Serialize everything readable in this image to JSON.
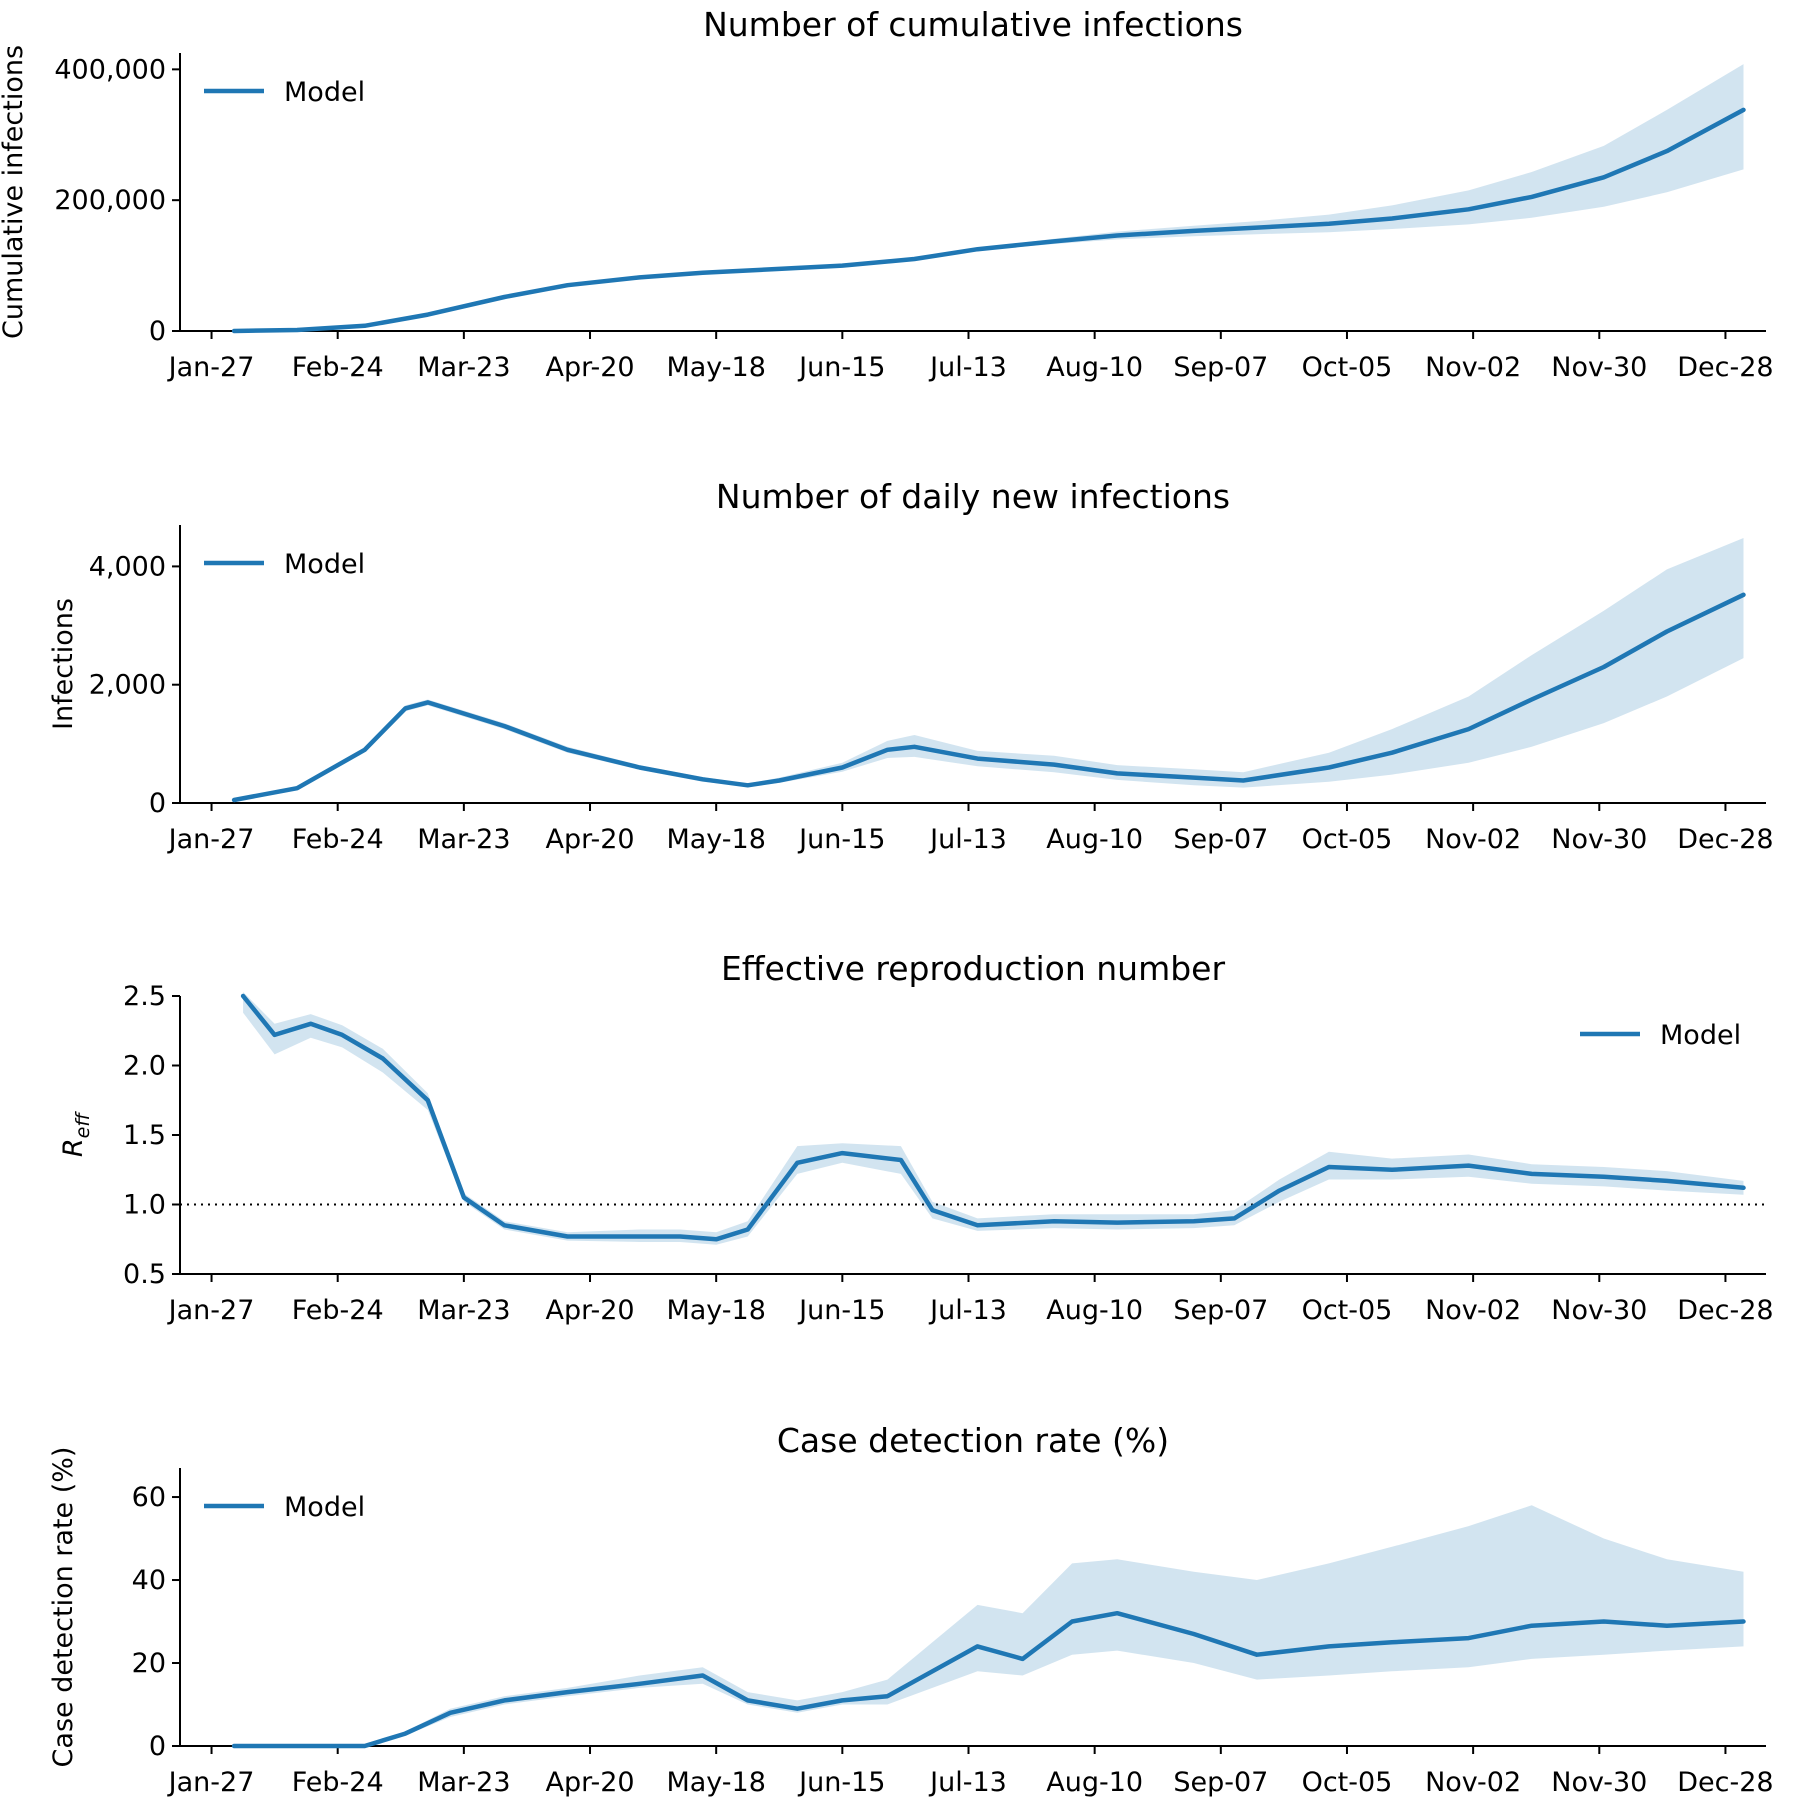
{
  "figure": {
    "background": "#ffffff"
  },
  "colors": {
    "line": "#1f77b4",
    "band": "#1f77b4",
    "band_opacity": 0.2,
    "reference": "#000000"
  },
  "date_axis": {
    "start": "Jan-20",
    "end": "Jan-06",
    "tick_dates": [
      "Jan-27",
      "Feb-24",
      "Mar-23",
      "Apr-20",
      "May-18",
      "Jun-15",
      "Jul-13",
      "Aug-10",
      "Sep-07",
      "Oct-05",
      "Nov-02",
      "Nov-30",
      "Dec-28"
    ]
  },
  "chart_data": [
    {
      "type": "line",
      "title": "Number of cumulative infections",
      "ylabel": "Cumulative infections",
      "ylim": [
        0,
        425000
      ],
      "yticks": [
        0,
        200000,
        400000
      ],
      "ytick_labels": [
        "0",
        "200,000",
        "400,000"
      ],
      "legend": {
        "position": "top-left",
        "label": "Model"
      },
      "series": [
        {
          "name": "Model",
          "x": [
            "Feb-01",
            "Feb-15",
            "Mar-01",
            "Mar-15",
            "Apr-01",
            "Apr-15",
            "May-01",
            "May-15",
            "Jun-01",
            "Jun-15",
            "Jul-01",
            "Jul-15",
            "Aug-01",
            "Aug-15",
            "Sep-01",
            "Sep-15",
            "Oct-01",
            "Oct-15",
            "Nov-01",
            "Nov-15",
            "Dec-01",
            "Dec-15",
            "Jan-01"
          ],
          "y": [
            0,
            1500,
            8000,
            25000,
            52000,
            70000,
            82000,
            89000,
            95000,
            100000,
            110000,
            125000,
            137000,
            146000,
            153000,
            158000,
            164000,
            172000,
            186000,
            205000,
            235000,
            275000,
            338000
          ],
          "lower": [
            0,
            1500,
            8000,
            25000,
            52000,
            70000,
            82000,
            89000,
            95000,
            100000,
            109000,
            123000,
            133000,
            140000,
            145000,
            148000,
            151000,
            156000,
            163000,
            173000,
            190000,
            212000,
            247000
          ],
          "upper": [
            0,
            1500,
            8000,
            25000,
            52000,
            70000,
            82000,
            89000,
            95000,
            100000,
            111000,
            127000,
            141000,
            152000,
            161000,
            168000,
            178000,
            192000,
            215000,
            243000,
            283000,
            338000,
            408000
          ]
        }
      ]
    },
    {
      "type": "line",
      "title": "Number of daily new infections",
      "ylabel": "Infections",
      "ylim": [
        0,
        4700
      ],
      "yticks": [
        0,
        2000,
        4000
      ],
      "ytick_labels": [
        "0",
        "2,000",
        "4,000"
      ],
      "legend": {
        "position": "top-left",
        "label": "Model"
      },
      "series": [
        {
          "name": "Model",
          "x": [
            "Feb-01",
            "Feb-15",
            "Mar-01",
            "Mar-10",
            "Mar-15",
            "Apr-01",
            "Apr-15",
            "May-01",
            "May-15",
            "May-25",
            "Jun-01",
            "Jun-15",
            "Jun-25",
            "Jul-01",
            "Jul-15",
            "Aug-01",
            "Aug-15",
            "Sep-01",
            "Sep-12",
            "Oct-01",
            "Oct-15",
            "Nov-01",
            "Nov-15",
            "Dec-01",
            "Dec-15",
            "Jan-01"
          ],
          "y": [
            50,
            250,
            900,
            1600,
            1700,
            1300,
            900,
            600,
            400,
            300,
            380,
            600,
            900,
            950,
            750,
            650,
            500,
            430,
            380,
            600,
            850,
            1250,
            1750,
            2300,
            2900,
            3520
          ],
          "lower": [
            50,
            250,
            880,
            1550,
            1650,
            1250,
            850,
            560,
            360,
            280,
            340,
            530,
            760,
            780,
            620,
            520,
            390,
            300,
            260,
            360,
            480,
            680,
            950,
            1350,
            1800,
            2450
          ],
          "upper": [
            50,
            250,
            920,
            1650,
            1750,
            1350,
            950,
            640,
            440,
            330,
            430,
            680,
            1050,
            1150,
            880,
            800,
            640,
            570,
            520,
            850,
            1250,
            1800,
            2500,
            3250,
            3950,
            4480
          ]
        }
      ]
    },
    {
      "type": "line",
      "title": "Effective reproduction number",
      "ylabel": "R_eff",
      "ylim": [
        0.5,
        2.5
      ],
      "yticks": [
        0.5,
        1.0,
        1.5,
        2.0,
        2.5
      ],
      "ytick_labels": [
        "0.5",
        "1.0",
        "1.5",
        "2.0",
        "2.5"
      ],
      "reference_line": 1.0,
      "legend": {
        "position": "top-right",
        "label": "Model"
      },
      "series": [
        {
          "name": "Model",
          "x": [
            "Feb-03",
            "Feb-10",
            "Feb-18",
            "Feb-25",
            "Mar-05",
            "Mar-15",
            "Mar-23",
            "Apr-01",
            "Apr-15",
            "May-01",
            "May-10",
            "May-18",
            "May-25",
            "Jun-05",
            "Jun-15",
            "Jun-28",
            "Jul-05",
            "Jul-15",
            "Aug-01",
            "Aug-15",
            "Sep-01",
            "Sep-10",
            "Sep-20",
            "Oct-01",
            "Oct-15",
            "Nov-01",
            "Nov-15",
            "Dec-01",
            "Dec-15",
            "Jan-01"
          ],
          "y": [
            2.5,
            2.22,
            2.3,
            2.22,
            2.05,
            1.75,
            1.05,
            0.85,
            0.77,
            0.77,
            0.77,
            0.75,
            0.82,
            1.3,
            1.37,
            1.32,
            0.96,
            0.85,
            0.88,
            0.87,
            0.88,
            0.9,
            1.1,
            1.27,
            1.25,
            1.28,
            1.22,
            1.2,
            1.17,
            1.12
          ],
          "lower": [
            2.38,
            2.08,
            2.2,
            2.13,
            1.95,
            1.68,
            1.02,
            0.82,
            0.74,
            0.73,
            0.73,
            0.71,
            0.77,
            1.22,
            1.3,
            1.22,
            0.9,
            0.81,
            0.83,
            0.82,
            0.83,
            0.85,
            1.02,
            1.18,
            1.18,
            1.2,
            1.15,
            1.13,
            1.1,
            1.07
          ],
          "upper": [
            2.55,
            2.3,
            2.37,
            2.29,
            2.12,
            1.8,
            1.08,
            0.88,
            0.8,
            0.82,
            0.82,
            0.8,
            0.88,
            1.42,
            1.44,
            1.42,
            1.02,
            0.9,
            0.93,
            0.93,
            0.93,
            0.96,
            1.18,
            1.38,
            1.33,
            1.36,
            1.29,
            1.27,
            1.24,
            1.17
          ]
        }
      ]
    },
    {
      "type": "line",
      "title": "Case detection rate (%)",
      "ylabel": "Case detection rate (%)",
      "ylim": [
        0,
        67
      ],
      "yticks": [
        0,
        20,
        40,
        60
      ],
      "ytick_labels": [
        "0",
        "20",
        "40",
        "60"
      ],
      "legend": {
        "position": "top-left",
        "label": "Model"
      },
      "series": [
        {
          "name": "Model",
          "x": [
            "Feb-01",
            "Feb-15",
            "Mar-01",
            "Mar-10",
            "Mar-20",
            "Apr-01",
            "Apr-15",
            "May-01",
            "May-15",
            "May-25",
            "Jun-05",
            "Jun-15",
            "Jun-25",
            "Jul-05",
            "Jul-15",
            "Jul-25",
            "Aug-05",
            "Aug-15",
            "Sep-01",
            "Sep-15",
            "Oct-01",
            "Oct-15",
            "Nov-01",
            "Nov-15",
            "Dec-01",
            "Dec-15",
            "Jan-01"
          ],
          "y": [
            0,
            0,
            0,
            3,
            8,
            11,
            13,
            15,
            17,
            11,
            9,
            11,
            12,
            18,
            24,
            21,
            30,
            32,
            27,
            22,
            24,
            25,
            26,
            29,
            30,
            29,
            30
          ],
          "lower": [
            0,
            0,
            0,
            2.5,
            7,
            10,
            12,
            14,
            15,
            10,
            8,
            10,
            10,
            14,
            18,
            17,
            22,
            23,
            20,
            16,
            17,
            18,
            19,
            21,
            22,
            23,
            24
          ],
          "upper": [
            0,
            0,
            0,
            3.5,
            9,
            12,
            14,
            17,
            19,
            13,
            11,
            13,
            16,
            25,
            34,
            32,
            44,
            45,
            42,
            40,
            44,
            48,
            53,
            58,
            50,
            45,
            42
          ]
        }
      ]
    }
  ]
}
